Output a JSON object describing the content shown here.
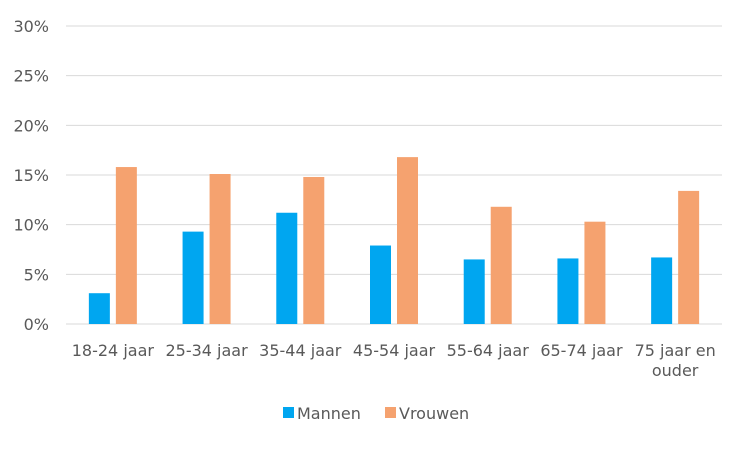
{
  "chart_data": {
    "type": "bar",
    "categories": [
      "18-24 jaar",
      "25-34 jaar",
      "35-44 jaar",
      "45-54 jaar",
      "55-64 jaar",
      "65-74 jaar",
      "75 jaar en ouder"
    ],
    "category_lines": [
      [
        "18-24 jaar"
      ],
      [
        "25-34 jaar"
      ],
      [
        "35-44 jaar"
      ],
      [
        "45-54 jaar"
      ],
      [
        "55-64 jaar"
      ],
      [
        "65-74 jaar"
      ],
      [
        "75 jaar en",
        "ouder"
      ]
    ],
    "series": [
      {
        "name": "Mannen",
        "color": "#00A6F0",
        "values": [
          3.1,
          9.3,
          11.2,
          7.9,
          6.5,
          6.6,
          6.7
        ]
      },
      {
        "name": "Vrouwen",
        "color": "#F5A26F",
        "values": [
          15.8,
          15.1,
          14.8,
          16.8,
          11.8,
          10.3,
          13.4
        ]
      }
    ],
    "yticks": [
      0,
      5,
      10,
      15,
      20,
      25,
      30
    ],
    "ytick_labels": [
      "0%",
      "5%",
      "10%",
      "15%",
      "20%",
      "25%",
      "30%"
    ],
    "ylim": [
      0,
      30
    ],
    "grid": true,
    "legend_position": "bottom",
    "colors": {
      "grid": "#D9D9D9",
      "text": "#595959"
    }
  }
}
